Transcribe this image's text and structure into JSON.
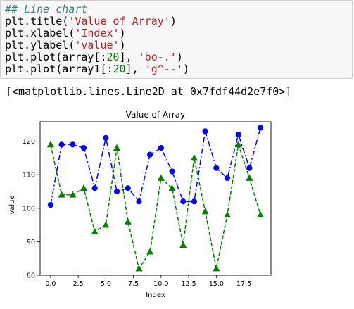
{
  "code": {
    "comment": "## Line chart",
    "line_title": {
      "prefix": "plt.title(",
      "str": "'Value of Array'",
      "suffix": ")"
    },
    "line_xlabel": {
      "prefix": "plt.xlabel(",
      "str": "'Index'",
      "suffix": ")"
    },
    "line_ylabel": {
      "prefix": "plt.ylabel(",
      "str": "'value'",
      "suffix": ")"
    },
    "line_plot1": {
      "prefix": "plt.plot(array[:",
      "num": "20",
      "mid": "], ",
      "str": "'bo-.'",
      "suffix": ")"
    },
    "line_plot2": {
      "prefix": "plt.plot(array1[:",
      "num": "20",
      "mid": "], ",
      "str": "'g^--'",
      "suffix": ")"
    }
  },
  "output_text": "[<matplotlib.lines.Line2D at 0x7fdf44d2e7f0>]",
  "colors": {
    "series_blue": "#0000ff",
    "series_green": "#008000",
    "code_bg": "#f7f7f7",
    "string": "#ba2121",
    "number": "#008000",
    "comment": "#408080"
  },
  "chart_data": {
    "type": "line",
    "title": "Value of Array",
    "xlabel": "Index",
    "ylabel": "value",
    "xlim": [
      -0.95,
      19.95
    ],
    "ylim": [
      80,
      125.8
    ],
    "xticks": [
      0.0,
      2.5,
      5.0,
      7.5,
      10.0,
      12.5,
      15.0,
      17.5
    ],
    "xtick_labels": [
      "0.0",
      "2.5",
      "5.0",
      "7.5",
      "10.0",
      "12.5",
      "15.0",
      "17.5"
    ],
    "yticks": [
      80,
      90,
      100,
      110,
      120
    ],
    "ytick_labels": [
      "80",
      "90",
      "100",
      "110",
      "120"
    ],
    "grid": false,
    "x": [
      0,
      1,
      2,
      3,
      4,
      5,
      6,
      7,
      8,
      9,
      10,
      11,
      12,
      13,
      14,
      15,
      16,
      17,
      18,
      19
    ],
    "series": [
      {
        "format": "bo-.",
        "color": "#0000ff",
        "marker": "circle",
        "linestyle": "dashdot",
        "values": [
          101,
          119,
          119,
          118,
          106,
          121,
          105,
          106,
          102,
          116,
          118,
          111,
          102,
          102,
          123,
          112,
          109,
          122,
          112,
          124
        ]
      },
      {
        "format": "g^--",
        "color": "#008000",
        "marker": "triangle",
        "linestyle": "dashed",
        "values": [
          119,
          104,
          104,
          106,
          93,
          95,
          118,
          96,
          82,
          87,
          109,
          106,
          89,
          115,
          99,
          82,
          98,
          119,
          109,
          98
        ]
      }
    ]
  }
}
